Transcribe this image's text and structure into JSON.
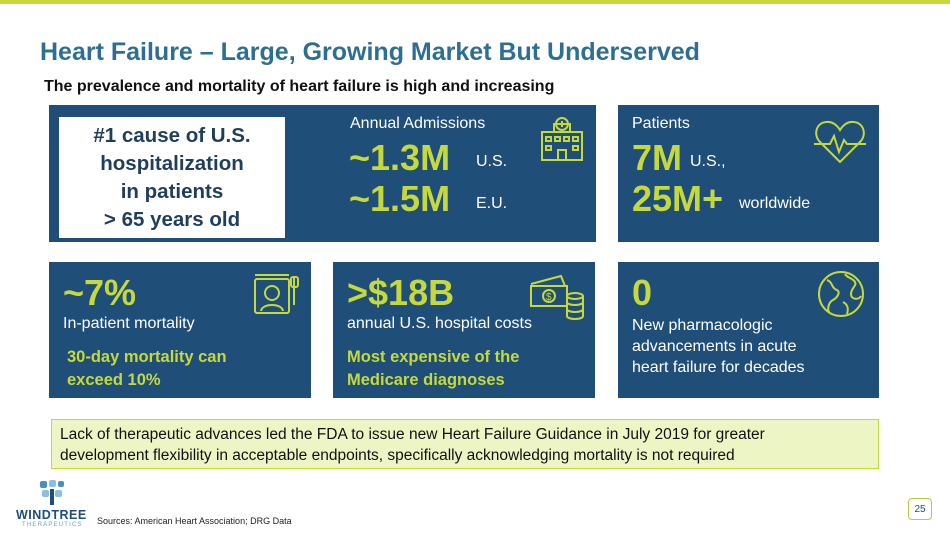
{
  "slide": {
    "title": "Heart Failure – Large, Growing Market But Underserved",
    "subtitle": "The prevalence and mortality of heart failure is high and increasing",
    "page_number": "25",
    "sources": "Sources: American Heart Association; DRG Data"
  },
  "colors": {
    "panel": "#1f4e79",
    "accent": "#c5d93c",
    "title": "#2d6f92"
  },
  "hospitalization_box": {
    "lines": [
      "#1 cause of U.S.",
      "hospitalization",
      "in patients",
      "> 65 years old"
    ]
  },
  "admissions": {
    "label": "Annual Admissions",
    "us_value": "~1.3M",
    "us_unit": "U.S.",
    "eu_value": "~1.5M",
    "eu_unit": "E.U.",
    "icon": "hospital-icon"
  },
  "patients": {
    "label": "Patients",
    "us_value": "7M",
    "us_unit": "U.S.,",
    "world_value": "25M+",
    "world_unit": "worldwide",
    "icon": "heartbeat-icon"
  },
  "mortality": {
    "value": "~7%",
    "label": "In-patient mortality",
    "note_line1": "30-day mortality can",
    "note_line2": "exceed 10%",
    "icon": "patient-bed-icon"
  },
  "costs": {
    "value": ">$18B",
    "label": "annual U.S. hospital costs",
    "note_line1": "Most expensive of the",
    "note_line2": "Medicare diagnoses",
    "icon": "money-icon"
  },
  "pharma": {
    "value": "0",
    "line1": "New pharmacologic",
    "line2": "advancements in acute",
    "line3": "heart failure for decades",
    "icon": "globe-icon"
  },
  "callout": {
    "line1": "Lack of therapeutic advances led the FDA to issue new Heart Failure Guidance in July 2019 for greater",
    "line2": "development flexibility in acceptable endpoints, specifically acknowledging mortality is not required"
  },
  "logo": {
    "name": "WINDTREE",
    "sub": "THERAPEUTICS"
  }
}
